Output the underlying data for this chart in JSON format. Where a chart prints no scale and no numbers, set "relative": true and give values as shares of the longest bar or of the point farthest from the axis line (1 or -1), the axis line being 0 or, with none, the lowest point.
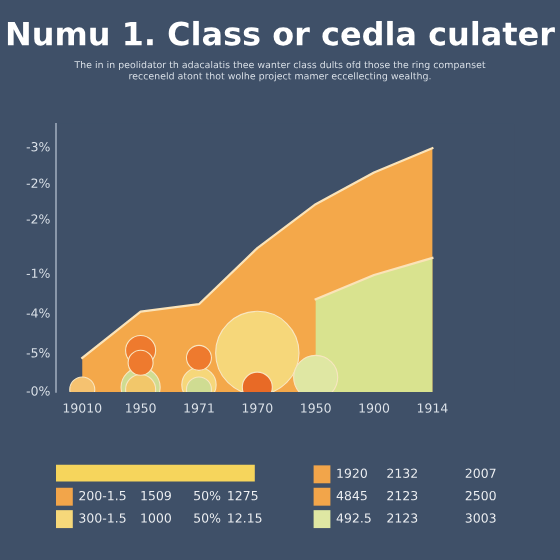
{
  "chart_data": {
    "type": "area",
    "title": "Numu 1. Class or cedla culater",
    "subtitle": "The in in peolidator th adacalatis thee wanter class dults ofd those the ring companset\nrecceneld atont thot wolhe project mamer eccellecting wealthg.",
    "relative": true,
    "categories": [
      "19010",
      "1950",
      "1971",
      "1970",
      "1950",
      "1900",
      "1914"
    ],
    "grid": false,
    "series": [
      {
        "color": "#f4a84a",
        "values": [
          0.14,
          0.33,
          0.36,
          0.59,
          0.77,
          0.9,
          1.0
        ]
      },
      {
        "color": "#d9e38f",
        "values": [
          null,
          null,
          null,
          null,
          0.38,
          0.48,
          0.55
        ]
      },
      {
        "type": "bubble",
        "values": [
          0.01,
          0.12,
          0.14,
          0.16,
          0.06,
          null,
          null
        ],
        "sizes": [
          0.09,
          0.09,
          0.09,
          1,
          0.28,
          null,
          null
        ],
        "colors": [
          "#f5c270",
          "#ee7a2e",
          "#ee7a2e",
          "#f6d77a",
          "#dfe7a3",
          null,
          null
        ]
      },
      {
        "type": "bubble",
        "values": [
          null,
          0.02,
          0.01,
          0.02,
          null,
          null,
          null
        ],
        "sizes": [
          null,
          0.22,
          0.09,
          0.13,
          null,
          null,
          null
        ],
        "colors": [
          null,
          "#cfdc92",
          "#cfdc92",
          "#e86a26",
          null,
          null,
          null
        ]
      },
      {
        "type": "bubble",
        "values": [
          null,
          0.17,
          0.03,
          null,
          null,
          null,
          null
        ],
        "sizes": [
          null,
          0.13,
          0.17,
          null,
          null,
          null,
          null
        ],
        "colors": [
          null,
          "#ee7a2e",
          "#f6d77a",
          null,
          null,
          null,
          null
        ]
      },
      {
        "type": "bubble",
        "values": [
          null,
          0.01,
          null,
          null,
          null,
          null,
          null
        ],
        "sizes": [
          null,
          0.13,
          null,
          null,
          null,
          null,
          null
        ],
        "colors": [
          null,
          "#f2c76a",
          null,
          null,
          null,
          null,
          null
        ]
      }
    ],
    "annotations": [
      "-3%",
      "-2%",
      "-2%",
      "-1%",
      "-4%",
      "-5%",
      "-0%",
      "200-1.5",
      "1509",
      "50%",
      "1275",
      "300-1.5",
      "1000",
      "50%",
      "12.15",
      "1920",
      "2132",
      "2007",
      "4845",
      "2123",
      "2500",
      "492.5",
      "2123",
      "3003"
    ]
  }
}
